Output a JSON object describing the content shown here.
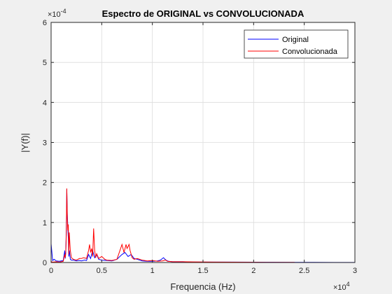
{
  "chart_data": {
    "type": "line",
    "title": "Espectro de ORIGINAL vs CONVOLUCIONADA",
    "xlabel": "Frequencia (Hz)",
    "ylabel": "|Y(f)|",
    "xlim": [
      0,
      30000
    ],
    "ylim": [
      0,
      0.0006
    ],
    "grid": true,
    "legend_position": "top-right",
    "x_ticks": [
      0,
      5000,
      10000,
      15000,
      20000,
      25000,
      30000
    ],
    "x_tick_labels": [
      "0",
      "0.5",
      "1",
      "1.5",
      "2",
      "2.5",
      "3"
    ],
    "x_exponent": "×10",
    "x_exponent_power": "4",
    "y_ticks": [
      0,
      0.0001,
      0.0002,
      0.0003,
      0.0004,
      0.0005,
      0.0006
    ],
    "y_tick_labels": [
      "0",
      "1",
      "2",
      "3",
      "4",
      "5",
      "6"
    ],
    "y_exponent": "×10",
    "y_exponent_power": "-4",
    "series": [
      {
        "name": "Original",
        "color": "#0000ff",
        "x": [
          0,
          150,
          300,
          500,
          800,
          1000,
          1200,
          1350,
          1400,
          1450,
          1500,
          1550,
          1600,
          1650,
          1700,
          1750,
          1800,
          1900,
          2000,
          2200,
          2500,
          2800,
          3000,
          3300,
          3500,
          3700,
          3900,
          4100,
          4300,
          4500,
          4700,
          5000,
          5500,
          6000,
          6500,
          7000,
          7300,
          7600,
          7900,
          8200,
          8500,
          9000,
          9500,
          10000,
          10500,
          10800,
          11100,
          11250,
          11400,
          11600,
          12000,
          13000,
          14000,
          15000,
          16000,
          17000,
          18000,
          20000,
          22000,
          24000,
          26000,
          28000,
          30000
        ],
        "y": [
          4.7e-05,
          5e-06,
          8e-06,
          4e-06,
          3e-06,
          4e-06,
          5e-06,
          3e-05,
          1e-05,
          2.5e-05,
          8e-05,
          0.000183,
          0.00012,
          9e-05,
          6e-05,
          1.5e-05,
          3e-05,
          8e-06,
          6e-06,
          6e-06,
          4e-06,
          5e-06,
          4e-06,
          6e-06,
          5e-06,
          2e-05,
          1e-05,
          3e-05,
          1.2e-05,
          2e-05,
          8e-06,
          6e-06,
          5e-06,
          4e-06,
          8e-06,
          2e-05,
          2.5e-05,
          1.5e-05,
          2e-05,
          1e-05,
          8e-06,
          4e-06,
          3e-06,
          3e-06,
          4e-06,
          6e-06,
          1.2e-05,
          8e-06,
          5e-06,
          3e-06,
          2e-06,
          2e-06,
          1e-06,
          1e-06,
          1e-06,
          1e-06,
          1e-06,
          8e-07,
          6e-07,
          5e-07,
          4e-07,
          3e-07,
          2e-07
        ]
      },
      {
        "name": "Convolucionada",
        "color": "#ff0000",
        "x": [
          0,
          200,
          500,
          800,
          1000,
          1200,
          1350,
          1400,
          1450,
          1500,
          1550,
          1600,
          1650,
          1700,
          1750,
          1800,
          1850,
          1900,
          2000,
          2200,
          2500,
          2800,
          3000,
          3200,
          3500,
          3700,
          3800,
          3900,
          4000,
          4100,
          4200,
          4300,
          4400,
          4500,
          4700,
          5000,
          5300,
          5500,
          6000,
          6500,
          6800,
          7000,
          7200,
          7400,
          7500,
          7700,
          7800,
          8000,
          8200,
          8500,
          9000,
          9500,
          10000,
          10500,
          11000,
          11300,
          11500,
          12000,
          13000,
          14000,
          15000,
          16000,
          18000,
          20000,
          22000,
          24000,
          24100,
          30000
        ],
        "y": [
          2e-06,
          1e-06,
          2e-06,
          1e-06,
          2e-06,
          3e-06,
          2e-05,
          1.2e-05,
          2.8e-05,
          7e-05,
          0.000185,
          0.00011,
          8e-05,
          9.5e-05,
          2e-05,
          7.5e-05,
          5e-05,
          3e-05,
          1.2e-05,
          8e-06,
          6e-06,
          1e-05,
          1e-05,
          1.2e-05,
          1e-05,
          3e-05,
          4.5e-05,
          2.5e-05,
          3.5e-05,
          1.5e-05,
          8.5e-05,
          3e-05,
          1.2e-05,
          2.2e-05,
          1e-05,
          1.5e-05,
          8e-06,
          6e-06,
          5e-06,
          8e-06,
          3e-05,
          4.5e-05,
          2.5e-05,
          4.5e-05,
          3.5e-05,
          4.5e-05,
          3e-05,
          1.2e-05,
          8e-06,
          1e-05,
          6e-06,
          4e-06,
          5e-06,
          3e-06,
          4e-06,
          6e-06,
          3e-06,
          2e-06,
          2e-06,
          1.5e-06,
          1.2e-06,
          1e-06,
          8e-07,
          6e-07,
          5e-07,
          4e-07,
          0,
          0
        ]
      }
    ]
  }
}
